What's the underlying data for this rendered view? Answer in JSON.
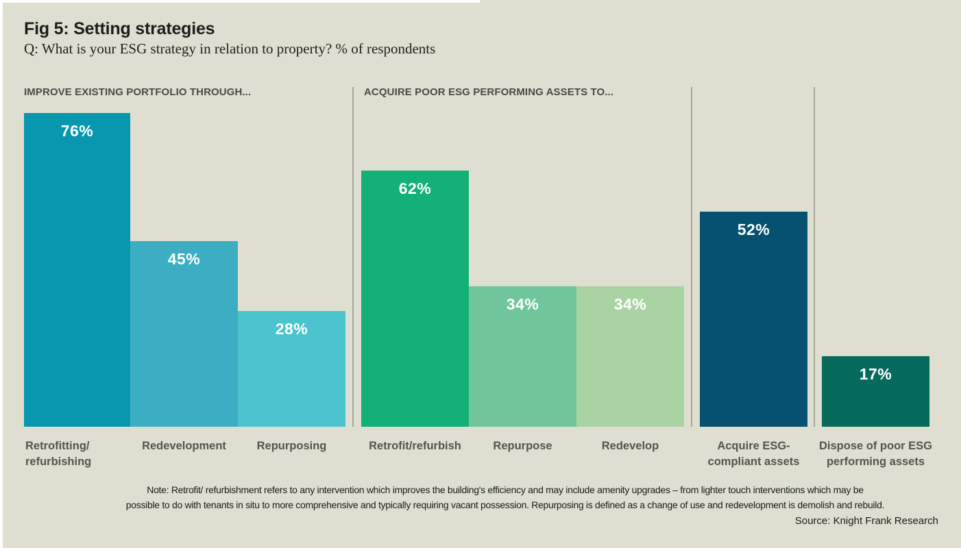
{
  "figure": {
    "title": "Fig 5: Setting strategies",
    "subtitle": "Q: What is your ESG strategy in relation to property? % of respondents",
    "note": "Note: Retrofit/ refurbishment refers to any intervention which improves the building's efficiency and may include amenity upgrades – from lighter touch interventions which may be\npossible to do with tenants in situ to more comprehensive and typically requiring vacant possession. Repurposing is defined as a change of use and redevelopment is demolish and rebuild.",
    "source": "Source: Knight Frank Research"
  },
  "colors": {
    "background": "#dedfd0",
    "divider": "#a6a69c",
    "title_text": "#1d1d1b",
    "header_text": "#4b4b46",
    "axis_label_text": "#54544e",
    "bar_value_text": "#ffffff"
  },
  "chart_data": {
    "type": "bar",
    "title": "Fig 5: Setting strategies",
    "subtitle": "Q: What is your ESG strategy in relation to property? % of respondents",
    "unit": "%",
    "ylim": [
      0,
      100
    ],
    "grid": false,
    "legend": false,
    "groups": [
      {
        "header": "IMPROVE EXISTING PORTFOLIO THROUGH...",
        "bars": [
          {
            "label": "Retrofitting/ refurbishing",
            "label_lines": [
              "Retrofitting/",
              "refurbishing"
            ],
            "value": 76,
            "value_label": "76%",
            "color": "#0797ae"
          },
          {
            "label": "Redevelopment",
            "label_lines": [
              "Redevelopment"
            ],
            "value": 45,
            "value_label": "45%",
            "color": "#3caec3"
          },
          {
            "label": "Repurposing",
            "label_lines": [
              "Repurposing"
            ],
            "value": 28,
            "value_label": "28%",
            "color": "#4cc4ce"
          }
        ]
      },
      {
        "header": "ACQUIRE POOR ESG PERFORMING ASSETS TO...",
        "bars": [
          {
            "label": "Retrofit/refurbish",
            "label_lines": [
              "Retrofit/refurbish"
            ],
            "value": 62,
            "value_label": "62%",
            "color": "#13b077"
          },
          {
            "label": "Repurpose",
            "label_lines": [
              "Repurpose"
            ],
            "value": 34,
            "value_label": "34%",
            "color": "#70c59b"
          },
          {
            "label": "Redevelop",
            "label_lines": [
              "Redevelop"
            ],
            "value": 34,
            "value_label": "34%",
            "color": "#aad3a4"
          }
        ]
      },
      {
        "header": "",
        "bars": [
          {
            "label": "Acquire ESG-compliant assets",
            "label_lines": [
              "Acquire ESG-",
              "compliant assets"
            ],
            "value": 52,
            "value_label": "52%",
            "color": "#06516f"
          }
        ]
      },
      {
        "header": "",
        "bars": [
          {
            "label": "Dispose of poor ESG performing assets",
            "label_lines": [
              "Dispose of poor ESG",
              "performing assets"
            ],
            "value": 17,
            "value_label": "17%",
            "color": "#066a5c"
          }
        ]
      }
    ]
  }
}
